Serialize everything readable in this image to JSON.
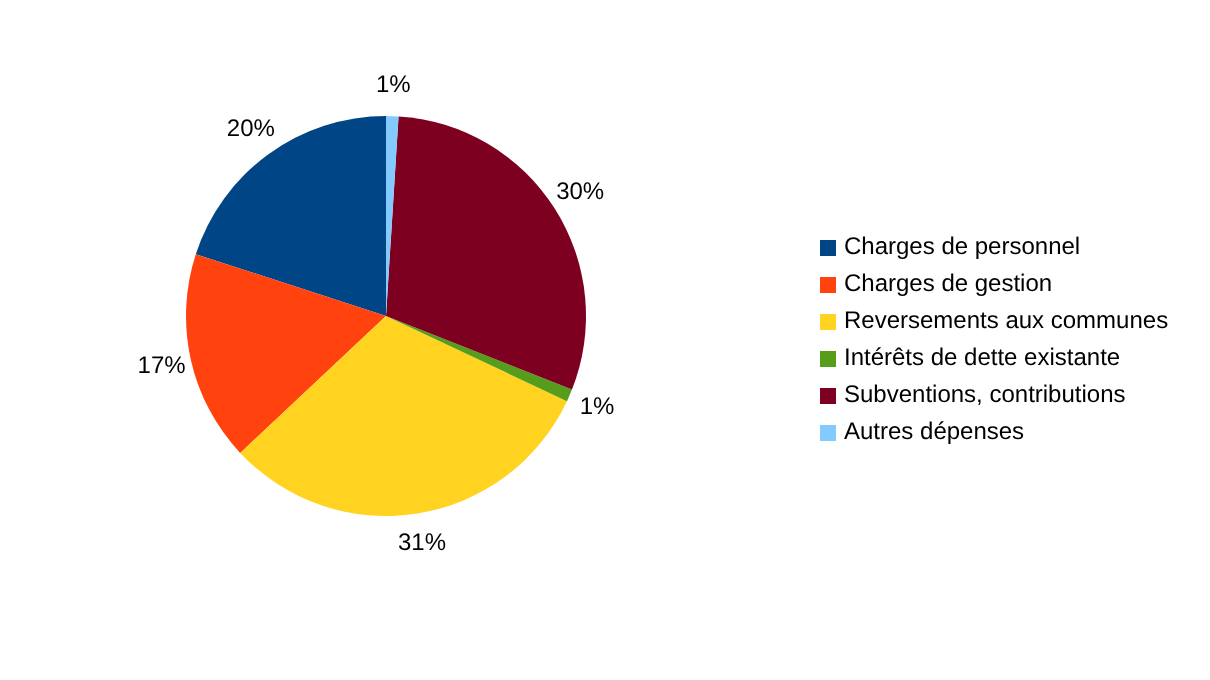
{
  "chart_data": {
    "type": "pie",
    "categories": [
      "Charges de personnel",
      "Charges de gestion",
      "Reversements aux communes",
      "Intérêts de dette existante",
      "Subventions, contributions",
      "Autres dépenses"
    ],
    "values": [
      20,
      17,
      31,
      1,
      30,
      1
    ],
    "colors": [
      "#004586",
      "#ff420e",
      "#ffd320",
      "#579d1c",
      "#7e0021",
      "#83caff"
    ],
    "value_labels": [
      "20%",
      "17%",
      "31%",
      "1%",
      "30%",
      "1%"
    ],
    "legend": "right"
  }
}
